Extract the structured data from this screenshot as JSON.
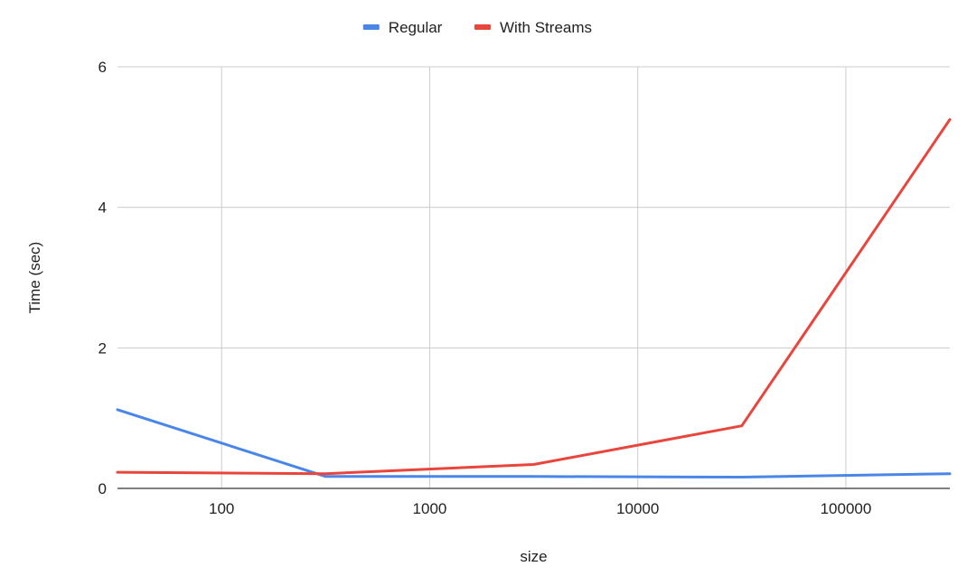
{
  "chart_data": {
    "type": "line",
    "title": "",
    "xlabel": "size",
    "ylabel": "Time (sec)",
    "x_scale": "log",
    "x": [
      31.6,
      316,
      3160,
      31600,
      316000
    ],
    "xlim": [
      31.6,
      316000
    ],
    "ylim": [
      0,
      6
    ],
    "x_ticks": [
      100,
      1000,
      10000,
      100000
    ],
    "x_tick_labels": [
      "100",
      "1000",
      "10000",
      "100000"
    ],
    "y_ticks": [
      0,
      2,
      4,
      6
    ],
    "y_tick_labels": [
      "0",
      "2",
      "4",
      "6"
    ],
    "grid": true,
    "legend_position": "top",
    "series": [
      {
        "name": "Regular",
        "color": "#4a86e8",
        "values": [
          1.12,
          0.17,
          0.17,
          0.16,
          0.21
        ]
      },
      {
        "name": "With Streams",
        "color": "#e8453c",
        "values": [
          0.23,
          0.21,
          0.34,
          0.89,
          5.25
        ]
      }
    ]
  }
}
